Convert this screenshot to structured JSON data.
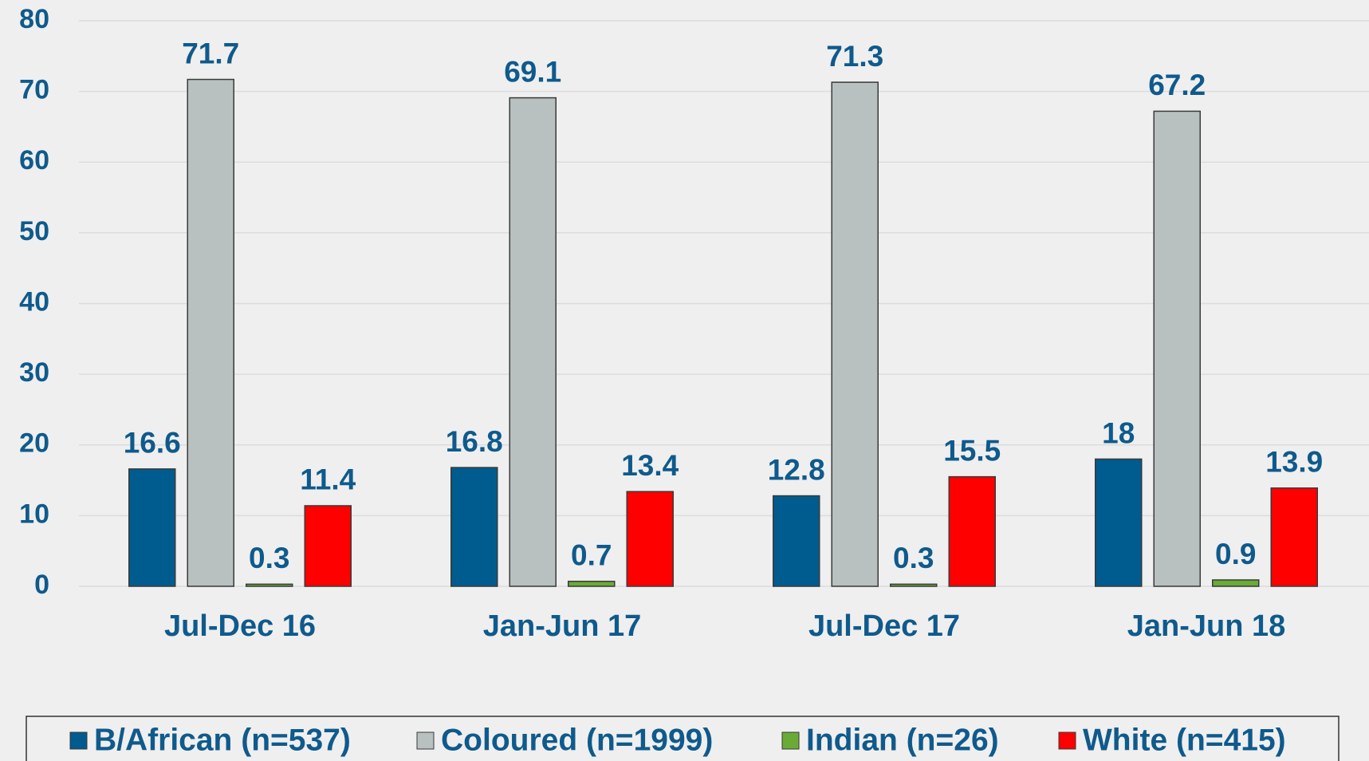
{
  "chart_data": {
    "type": "bar",
    "categories": [
      "Jul-Dec 16",
      "Jan-Jun 17",
      "Jul-Dec 17",
      "Jan-Jun 18"
    ],
    "series": [
      {
        "name": "B/African (n=537)",
        "color": "#005b8e",
        "values": [
          16.6,
          16.8,
          12.8,
          18
        ]
      },
      {
        "name": "Coloured (n=1999)",
        "color": "#b8c1c0",
        "values": [
          71.7,
          69.1,
          71.3,
          67.2
        ]
      },
      {
        "name": "Indian (n=26)",
        "color": "#6aab37",
        "values": [
          0.3,
          0.7,
          0.3,
          0.9
        ]
      },
      {
        "name": "White (n=415)",
        "color": "#ff0000",
        "values": [
          11.4,
          13.4,
          15.5,
          13.9
        ]
      }
    ],
    "ylim": [
      0,
      80
    ],
    "yticks": [
      0,
      10,
      20,
      30,
      40,
      50,
      60,
      70,
      80
    ],
    "grid": true,
    "legend": "bottom"
  }
}
